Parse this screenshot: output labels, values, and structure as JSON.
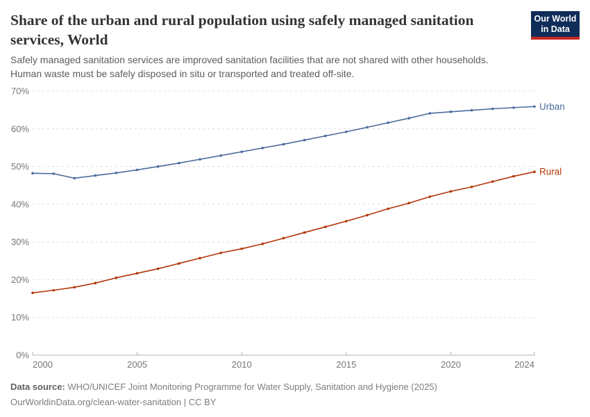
{
  "header": {
    "title_line1": "Share of the urban and rural population using safely managed sanitation",
    "title_line2": "services, World",
    "subtitle_line1": "Safely managed sanitation services are improved sanitation facilities that are not shared with other households.",
    "subtitle_line2": "Human waste must be safely disposed in situ or transported and treated off-site.",
    "logo_line1": "Our World",
    "logo_line2": "in Data",
    "logo_bg": "#102D59",
    "logo_stripe": "#C82823"
  },
  "chart_data": {
    "type": "line",
    "title": "Share of the urban and rural population using safely managed sanitation services, World",
    "x": [
      2000,
      2001,
      2002,
      2003,
      2004,
      2005,
      2006,
      2007,
      2008,
      2009,
      2010,
      2011,
      2012,
      2013,
      2014,
      2015,
      2016,
      2017,
      2018,
      2019,
      2020,
      2021,
      2022,
      2023,
      2024
    ],
    "series": [
      {
        "name": "Urban",
        "color": "#4C6A9C",
        "values": [
          48.2,
          48.1,
          46.9,
          47.6,
          48.3,
          49.1,
          50.0,
          50.9,
          51.9,
          52.9,
          53.9,
          54.9,
          55.9,
          57.0,
          58.1,
          59.2,
          60.4,
          61.6,
          62.8,
          64.1,
          64.5,
          64.9,
          65.3,
          65.6,
          65.9
        ]
      },
      {
        "name": "Rural",
        "color": "#B13507",
        "values": [
          16.5,
          17.2,
          18.0,
          19.1,
          20.5,
          21.7,
          22.9,
          24.3,
          25.7,
          27.1,
          28.2,
          29.5,
          31.0,
          32.5,
          34.0,
          35.5,
          37.1,
          38.8,
          40.3,
          42.0,
          43.4,
          44.6,
          46.0,
          47.4,
          48.6
        ]
      }
    ],
    "ylim": [
      0,
      70
    ],
    "yticks": [
      0,
      10,
      20,
      30,
      40,
      50,
      60,
      70
    ],
    "ytick_suffix": "%",
    "xticks": [
      2000,
      2005,
      2010,
      2015,
      2020,
      2024
    ],
    "xlabel": "",
    "ylabel": "",
    "grid": "horizontal-dashed",
    "legend": "line-end-labels",
    "axis_text_color": "#757575",
    "grid_color": "#dcdcdc"
  },
  "footer": {
    "source_label": "Data source:",
    "source_text": "WHO/UNICEF Joint Monitoring Programme for Water Supply, Sanitation and Hygiene (2025)",
    "link_line": "OurWorldinData.org/clean-water-sanitation | CC BY"
  }
}
